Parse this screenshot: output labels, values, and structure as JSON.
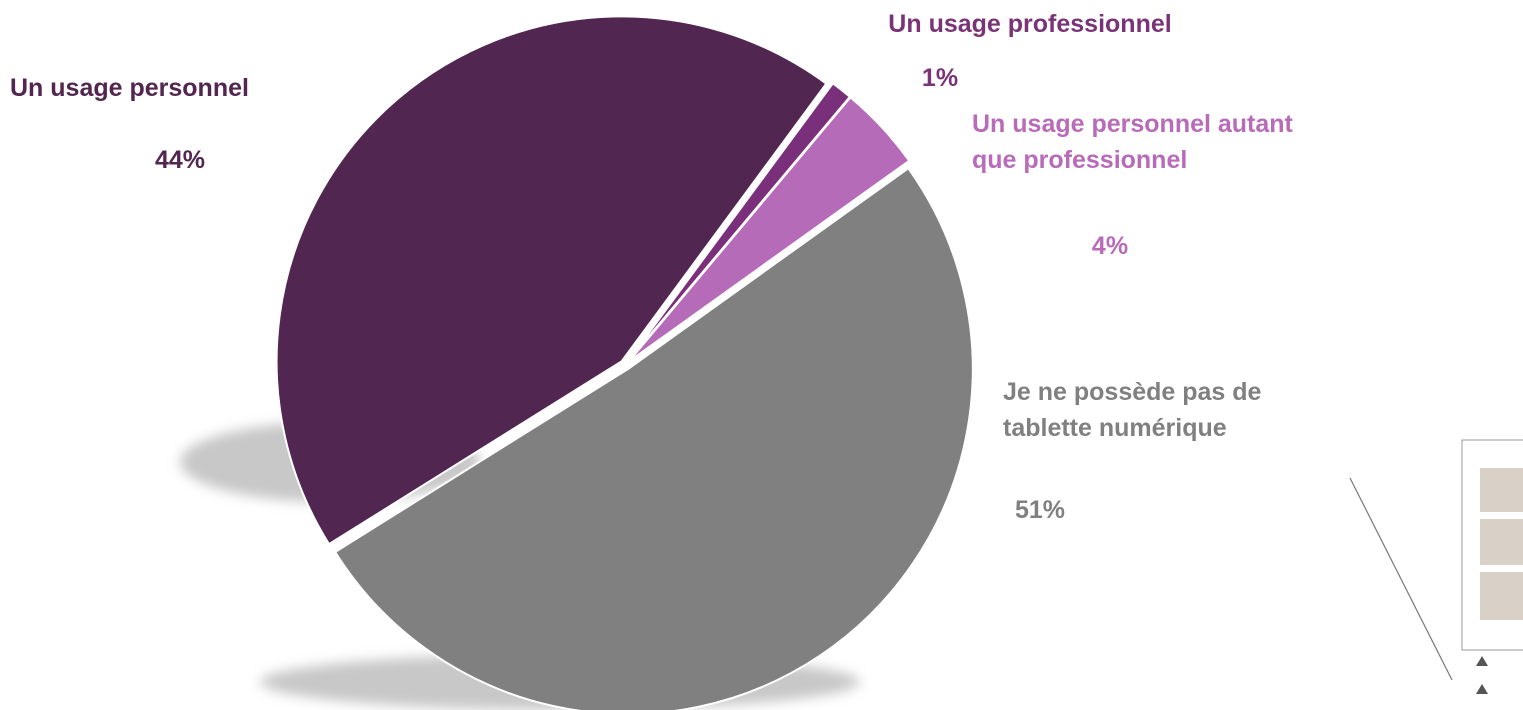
{
  "chart_data": {
    "type": "pie",
    "categories": [
      "Un usage personnel",
      "Un usage professionnel",
      "Un usage personnel autant que professionnel",
      "Je ne possède pas de tablette numérique"
    ],
    "values": [
      44,
      1,
      4,
      51
    ],
    "value_labels": [
      "44%",
      "1%",
      "4%",
      "51%"
    ],
    "colors": [
      "#512650",
      "#7a2f7a",
      "#b56bb7",
      "#808080"
    ],
    "label_colors": [
      "#52264f",
      "#7b3378",
      "#b86bb8",
      "#808080"
    ]
  }
}
